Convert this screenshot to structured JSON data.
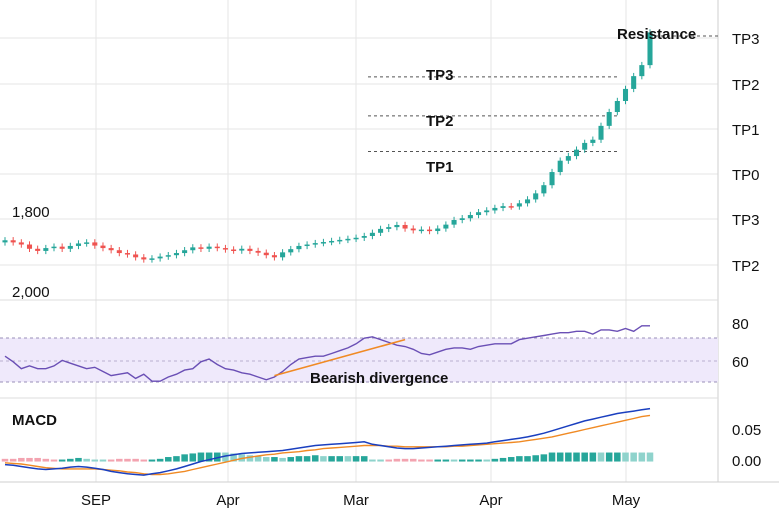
{
  "chart_data": {
    "type": "candlestick",
    "colors": {
      "up": "#26a69a",
      "down": "#ef5350",
      "grid": "#e6e6e6",
      "rsi_line": "#6a4fb5",
      "rsi_band": "#efe9fb",
      "trend_line": "#f08a24",
      "macd_line": "#1a3fbf",
      "signal_line": "#f08a24",
      "hist_up": "#26a69a",
      "hist_up_light": "#8fd3cc",
      "hist_down": "#f3a3b0"
    },
    "x_ticks": [
      "SEP",
      "Apr",
      "Mar",
      "Apr",
      "May"
    ],
    "price_panel": {
      "right_axis_labels": [
        "TP3",
        "TP2",
        "TP1",
        "TP0",
        "TP3",
        "TP2"
      ],
      "left_labels": [
        "1,800",
        "2,000"
      ],
      "levels": [
        {
          "label": "TP3",
          "value": 84
        },
        {
          "label": "TP2",
          "value": 73
        },
        {
          "label": "TP1",
          "value": 63
        }
      ],
      "resistance": {
        "label": "Resistance",
        "value": 95.5
      },
      "closes": [
        38,
        37.4,
        36.8,
        35.6,
        35,
        35.8,
        36.2,
        35.6,
        36.4,
        37.1,
        37.4,
        36.5,
        35.8,
        35.2,
        34.4,
        34,
        33.2,
        32.6,
        32.9,
        33.4,
        33.8,
        34.4,
        35.2,
        36,
        35.6,
        36.2,
        35.8,
        35.4,
        35.1,
        35.6,
        35,
        34.5,
        33.8,
        33.2,
        34.6,
        35.5,
        36.4,
        36.8,
        37.2,
        37.5,
        37.8,
        38.1,
        38.4,
        38.7,
        39.2,
        40.1,
        41.2,
        41.7,
        42.3,
        41.3,
        40.8,
        41,
        40.6,
        41.3,
        42.4,
        43.7,
        44.2,
        45.1,
        45.9,
        46.4,
        47.1,
        47.6,
        47.5,
        48.4,
        49.5,
        51.2,
        53.5,
        57.2,
        60.4,
        61.7,
        63.5,
        65.4,
        66.3,
        70.2,
        74.1,
        77.2,
        80.6,
        84.2,
        87.3,
        96.5
      ],
      "ylim": [
        24,
        100
      ]
    },
    "rsi_panel": {
      "axis_labels": [
        "80",
        "60"
      ],
      "annotation": "Bearish divergence",
      "values": [
        58,
        54,
        49,
        51,
        49,
        49,
        51,
        55,
        53,
        51,
        49,
        50,
        47,
        44,
        45,
        46,
        42,
        45,
        40,
        40,
        43,
        45,
        48,
        49,
        54,
        56,
        52,
        49,
        48,
        46,
        45,
        43,
        41,
        43,
        47,
        52,
        56,
        57,
        58,
        58,
        60,
        62,
        64,
        67,
        71,
        72,
        70,
        68,
        66,
        65,
        63,
        60,
        59,
        61,
        63,
        64,
        64,
        63,
        65,
        66,
        67,
        67,
        67,
        70,
        71,
        72,
        73,
        74,
        75,
        75,
        76,
        76,
        74,
        77,
        77,
        76,
        78,
        76,
        80,
        80
      ],
      "trend": [
        [
          33,
          44
        ],
        [
          49,
          70
        ]
      ],
      "ylim": [
        30,
        95
      ]
    },
    "macd_panel": {
      "title": "MACD",
      "axis_labels": [
        "0.05",
        "0.00"
      ],
      "macd": [
        -0.005,
        -0.006,
        -0.008,
        -0.01,
        -0.012,
        -0.013,
        -0.012,
        -0.011,
        -0.009,
        -0.008,
        -0.009,
        -0.011,
        -0.013,
        -0.016,
        -0.018,
        -0.02,
        -0.021,
        -0.022,
        -0.02,
        -0.018,
        -0.015,
        -0.012,
        -0.008,
        -0.004,
        0,
        0.003,
        0.006,
        0.009,
        0.011,
        0.013,
        0.014,
        0.015,
        0.016,
        0.017,
        0.018,
        0.02,
        0.022,
        0.024,
        0.026,
        0.027,
        0.028,
        0.029,
        0.03,
        0.031,
        0.032,
        0.028,
        0.026,
        0.024,
        0.022,
        0.021,
        0.021,
        0.022,
        0.023,
        0.024,
        0.025,
        0.026,
        0.027,
        0.028,
        0.029,
        0.03,
        0.032,
        0.034,
        0.036,
        0.038,
        0.04,
        0.043,
        0.046,
        0.05,
        0.054,
        0.058,
        0.062,
        0.066,
        0.069,
        0.072,
        0.075,
        0.078,
        0.08,
        0.082,
        0.084,
        0.086
      ],
      "signal": [
        -0.002,
        -0.003,
        -0.004,
        -0.006,
        -0.008,
        -0.01,
        -0.011,
        -0.012,
        -0.012,
        -0.012,
        -0.012,
        -0.012,
        -0.013,
        -0.014,
        -0.015,
        -0.017,
        -0.018,
        -0.02,
        -0.021,
        -0.021,
        -0.02,
        -0.018,
        -0.016,
        -0.013,
        -0.01,
        -0.007,
        -0.004,
        -0.001,
        0.002,
        0.005,
        0.007,
        0.009,
        0.011,
        0.012,
        0.014,
        0.015,
        0.016,
        0.018,
        0.019,
        0.021,
        0.022,
        0.023,
        0.024,
        0.025,
        0.026,
        0.026,
        0.026,
        0.025,
        0.025,
        0.024,
        0.024,
        0.024,
        0.024,
        0.024,
        0.024,
        0.025,
        0.025,
        0.026,
        0.027,
        0.028,
        0.029,
        0.03,
        0.031,
        0.032,
        0.034,
        0.036,
        0.038,
        0.04,
        0.043,
        0.046,
        0.049,
        0.052,
        0.055,
        0.058,
        0.061,
        0.064,
        0.067,
        0.07,
        0.073,
        0.075
      ],
      "ylim": [
        -0.03,
        0.1
      ]
    }
  }
}
